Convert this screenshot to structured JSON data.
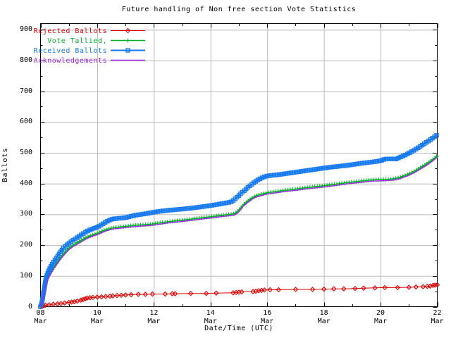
{
  "title": "Future handling of Non free section Vote Statistics",
  "chart_data": {
    "type": "line",
    "title": "Future handling of Non free section Vote Statistics",
    "xlabel": "Date/Time (UTC)",
    "ylabel": "Ballots",
    "xlim": [
      8,
      22
    ],
    "ylim": [
      0,
      920
    ],
    "grid": true,
    "legend_position": "top-left",
    "grid_color": "#b8b8b8",
    "axis_color": "#000000",
    "x_ticks": [
      {
        "v": 8,
        "label": "08\nMar"
      },
      {
        "v": 10,
        "label": "10\nMar"
      },
      {
        "v": 12,
        "label": "12\nMar"
      },
      {
        "v": 14,
        "label": "14\nMar"
      },
      {
        "v": 16,
        "label": "16\nMar"
      },
      {
        "v": 18,
        "label": "18\nMar"
      },
      {
        "v": 20,
        "label": "20\nMar"
      },
      {
        "v": 22,
        "label": "22\nMar"
      }
    ],
    "x_minor_ticks": [
      9,
      11,
      13,
      15,
      17,
      19,
      21
    ],
    "y_ticks": [
      {
        "v": 0,
        "label": "0"
      },
      {
        "v": 100,
        "label": "100"
      },
      {
        "v": 200,
        "label": "200"
      },
      {
        "v": 300,
        "label": "300"
      },
      {
        "v": 400,
        "label": "400"
      },
      {
        "v": 500,
        "label": "500"
      },
      {
        "v": 600,
        "label": "600"
      },
      {
        "v": 700,
        "label": "700"
      },
      {
        "v": 800,
        "label": "800"
      },
      {
        "v": 900,
        "label": "900"
      }
    ],
    "y_minor_ticks": [
      50,
      150,
      250,
      350,
      450,
      550,
      650,
      750,
      850
    ],
    "series": [
      {
        "name": "Rejected Ballots",
        "color": "#e00000",
        "marker": "diamond",
        "line_width": 1,
        "dense_markers": false,
        "points": [
          [
            8.0,
            0
          ],
          [
            8.05,
            2
          ],
          [
            8.1,
            3
          ],
          [
            8.17,
            5
          ],
          [
            8.3,
            6
          ],
          [
            8.45,
            8
          ],
          [
            8.6,
            9
          ],
          [
            8.72,
            10
          ],
          [
            8.85,
            12
          ],
          [
            9.0,
            14
          ],
          [
            9.1,
            15
          ],
          [
            9.2,
            16
          ],
          [
            9.3,
            18
          ],
          [
            9.42,
            21
          ],
          [
            9.5,
            23
          ],
          [
            9.58,
            26
          ],
          [
            9.65,
            28
          ],
          [
            9.75,
            29
          ],
          [
            9.85,
            30
          ],
          [
            10.0,
            31
          ],
          [
            10.15,
            32
          ],
          [
            10.3,
            33
          ],
          [
            10.45,
            34
          ],
          [
            10.55,
            35
          ],
          [
            10.7,
            36
          ],
          [
            10.85,
            37
          ],
          [
            11.0,
            38
          ],
          [
            11.2,
            39
          ],
          [
            11.45,
            40
          ],
          [
            11.7,
            40
          ],
          [
            11.95,
            41
          ],
          [
            12.4,
            41
          ],
          [
            12.65,
            42
          ],
          [
            12.75,
            42
          ],
          [
            13.3,
            43
          ],
          [
            13.85,
            43
          ],
          [
            14.2,
            44
          ],
          [
            14.8,
            45
          ],
          [
            14.9,
            46
          ],
          [
            15.0,
            47
          ],
          [
            15.1,
            48
          ],
          [
            15.5,
            49
          ],
          [
            15.6,
            50
          ],
          [
            15.7,
            52
          ],
          [
            15.8,
            53
          ],
          [
            15.9,
            54
          ],
          [
            16.1,
            55
          ],
          [
            16.4,
            55
          ],
          [
            17.0,
            56
          ],
          [
            17.6,
            56
          ],
          [
            18.0,
            57
          ],
          [
            18.35,
            58
          ],
          [
            18.7,
            58
          ],
          [
            19.1,
            59
          ],
          [
            19.4,
            60
          ],
          [
            19.8,
            61
          ],
          [
            20.15,
            62
          ],
          [
            20.6,
            62
          ],
          [
            21.0,
            63
          ],
          [
            21.25,
            64
          ],
          [
            21.5,
            65
          ],
          [
            21.65,
            66
          ],
          [
            21.75,
            67
          ],
          [
            21.85,
            69
          ],
          [
            21.92,
            70
          ],
          [
            22.0,
            71
          ]
        ]
      },
      {
        "name": "Vote Tallied,",
        "color": "#00b028",
        "marker": "plus",
        "line_width": 1.4,
        "dense_markers": true,
        "points": [
          [
            8.0,
            0
          ],
          [
            8.06,
            18
          ],
          [
            8.1,
            40
          ],
          [
            8.15,
            62
          ],
          [
            8.2,
            82
          ],
          [
            8.28,
            100
          ],
          [
            8.38,
            115
          ],
          [
            8.48,
            130
          ],
          [
            8.58,
            143
          ],
          [
            8.68,
            156
          ],
          [
            8.78,
            168
          ],
          [
            8.9,
            180
          ],
          [
            9.0,
            190
          ],
          [
            9.15,
            200
          ],
          [
            9.3,
            208
          ],
          [
            9.45,
            216
          ],
          [
            9.6,
            224
          ],
          [
            9.75,
            230
          ],
          [
            9.9,
            235
          ],
          [
            10.0,
            238
          ],
          [
            10.15,
            244
          ],
          [
            10.3,
            250
          ],
          [
            10.45,
            254
          ],
          [
            10.6,
            257
          ],
          [
            10.8,
            259
          ],
          [
            11.0,
            261
          ],
          [
            11.3,
            264
          ],
          [
            11.6,
            266
          ],
          [
            11.9,
            268
          ],
          [
            12.2,
            272
          ],
          [
            12.5,
            276
          ],
          [
            12.8,
            279
          ],
          [
            13.1,
            282
          ],
          [
            13.45,
            286
          ],
          [
            13.8,
            290
          ],
          [
            14.1,
            293
          ],
          [
            14.4,
            297
          ],
          [
            14.7,
            300
          ],
          [
            14.85,
            302
          ],
          [
            14.95,
            308
          ],
          [
            15.05,
            318
          ],
          [
            15.15,
            330
          ],
          [
            15.3,
            342
          ],
          [
            15.45,
            352
          ],
          [
            15.6,
            360
          ],
          [
            15.75,
            364
          ],
          [
            15.9,
            368
          ],
          [
            16.0,
            370
          ],
          [
            16.3,
            374
          ],
          [
            16.6,
            378
          ],
          [
            17.0,
            382
          ],
          [
            17.4,
            387
          ],
          [
            17.8,
            391
          ],
          [
            18.1,
            394
          ],
          [
            18.5,
            399
          ],
          [
            18.9,
            404
          ],
          [
            19.3,
            408
          ],
          [
            19.7,
            412
          ],
          [
            20.0,
            413
          ],
          [
            20.3,
            414
          ],
          [
            20.5,
            416
          ],
          [
            20.65,
            419
          ],
          [
            20.8,
            424
          ],
          [
            21.0,
            431
          ],
          [
            21.2,
            440
          ],
          [
            21.4,
            451
          ],
          [
            21.6,
            462
          ],
          [
            21.8,
            475
          ],
          [
            21.9,
            482
          ],
          [
            22.0,
            490
          ]
        ]
      },
      {
        "name": "Received Ballots",
        "color": "#1478f0",
        "marker": "square",
        "line_width": 2,
        "dense_markers": true,
        "points": [
          [
            8.0,
            0
          ],
          [
            8.04,
            10
          ],
          [
            8.08,
            30
          ],
          [
            8.12,
            52
          ],
          [
            8.16,
            75
          ],
          [
            8.2,
            95
          ],
          [
            8.26,
            110
          ],
          [
            8.33,
            125
          ],
          [
            8.42,
            140
          ],
          [
            8.52,
            153
          ],
          [
            8.62,
            166
          ],
          [
            8.72,
            180
          ],
          [
            8.82,
            192
          ],
          [
            8.92,
            200
          ],
          [
            9.0,
            206
          ],
          [
            9.15,
            216
          ],
          [
            9.3,
            225
          ],
          [
            9.45,
            234
          ],
          [
            9.6,
            243
          ],
          [
            9.75,
            250
          ],
          [
            9.9,
            255
          ],
          [
            10.0,
            258
          ],
          [
            10.15,
            266
          ],
          [
            10.3,
            275
          ],
          [
            10.45,
            282
          ],
          [
            10.55,
            285
          ],
          [
            10.75,
            287
          ],
          [
            11.0,
            289
          ],
          [
            11.2,
            294
          ],
          [
            11.4,
            298
          ],
          [
            11.7,
            302
          ],
          [
            12.0,
            307
          ],
          [
            12.3,
            311
          ],
          [
            12.6,
            314
          ],
          [
            13.0,
            317
          ],
          [
            13.4,
            321
          ],
          [
            13.8,
            326
          ],
          [
            14.1,
            330
          ],
          [
            14.35,
            334
          ],
          [
            14.6,
            338
          ],
          [
            14.75,
            341
          ],
          [
            14.85,
            349
          ],
          [
            14.95,
            357
          ],
          [
            15.05,
            366
          ],
          [
            15.2,
            378
          ],
          [
            15.35,
            390
          ],
          [
            15.5,
            401
          ],
          [
            15.65,
            411
          ],
          [
            15.8,
            418
          ],
          [
            15.95,
            424
          ],
          [
            16.1,
            426
          ],
          [
            16.4,
            429
          ],
          [
            16.7,
            433
          ],
          [
            17.0,
            437
          ],
          [
            17.3,
            441
          ],
          [
            17.6,
            445
          ],
          [
            17.9,
            449
          ],
          [
            18.2,
            453
          ],
          [
            18.5,
            456
          ],
          [
            18.8,
            459
          ],
          [
            19.1,
            463
          ],
          [
            19.4,
            467
          ],
          [
            19.7,
            470
          ],
          [
            20.0,
            474
          ],
          [
            20.1,
            478
          ],
          [
            20.2,
            480
          ],
          [
            20.55,
            480
          ],
          [
            20.7,
            486
          ],
          [
            20.9,
            494
          ],
          [
            21.1,
            504
          ],
          [
            21.3,
            515
          ],
          [
            21.5,
            527
          ],
          [
            21.7,
            539
          ],
          [
            21.85,
            549
          ],
          [
            22.0,
            558
          ]
        ]
      },
      {
        "name": "Acknowledgements",
        "color": "#a822ee",
        "marker": "none",
        "line_width": 1.4,
        "dense_markers": false,
        "points": [
          [
            8.0,
            0
          ],
          [
            8.06,
            14
          ],
          [
            8.1,
            34
          ],
          [
            8.15,
            55
          ],
          [
            8.2,
            76
          ],
          [
            8.28,
            94
          ],
          [
            8.38,
            110
          ],
          [
            8.48,
            125
          ],
          [
            8.58,
            138
          ],
          [
            8.68,
            151
          ],
          [
            8.78,
            163
          ],
          [
            8.9,
            175
          ],
          [
            9.0,
            185
          ],
          [
            9.15,
            195
          ],
          [
            9.3,
            203
          ],
          [
            9.45,
            211
          ],
          [
            9.6,
            219
          ],
          [
            9.75,
            226
          ],
          [
            9.9,
            231
          ],
          [
            10.0,
            234
          ],
          [
            10.15,
            240
          ],
          [
            10.3,
            246
          ],
          [
            10.45,
            250
          ],
          [
            10.6,
            253
          ],
          [
            10.8,
            255
          ],
          [
            11.0,
            257
          ],
          [
            11.3,
            260
          ],
          [
            11.6,
            262
          ],
          [
            11.9,
            264
          ],
          [
            12.2,
            268
          ],
          [
            12.5,
            272
          ],
          [
            12.8,
            275
          ],
          [
            13.1,
            278
          ],
          [
            13.45,
            282
          ],
          [
            13.8,
            286
          ],
          [
            14.1,
            289
          ],
          [
            14.4,
            293
          ],
          [
            14.7,
            296
          ],
          [
            14.85,
            298
          ],
          [
            14.95,
            304
          ],
          [
            15.05,
            314
          ],
          [
            15.15,
            326
          ],
          [
            15.3,
            338
          ],
          [
            15.45,
            348
          ],
          [
            15.6,
            356
          ],
          [
            15.75,
            360
          ],
          [
            15.9,
            364
          ],
          [
            16.0,
            366
          ],
          [
            16.3,
            370
          ],
          [
            16.6,
            374
          ],
          [
            17.0,
            378
          ],
          [
            17.4,
            383
          ],
          [
            17.8,
            387
          ],
          [
            18.1,
            390
          ],
          [
            18.5,
            395
          ],
          [
            18.9,
            400
          ],
          [
            19.3,
            404
          ],
          [
            19.7,
            408
          ],
          [
            20.0,
            409
          ],
          [
            20.3,
            410
          ],
          [
            20.5,
            412
          ],
          [
            20.65,
            415
          ],
          [
            20.8,
            420
          ],
          [
            21.0,
            427
          ],
          [
            21.2,
            436
          ],
          [
            21.4,
            447
          ],
          [
            21.6,
            458
          ],
          [
            21.8,
            471
          ],
          [
            21.9,
            478
          ],
          [
            22.0,
            486
          ]
        ]
      }
    ]
  }
}
